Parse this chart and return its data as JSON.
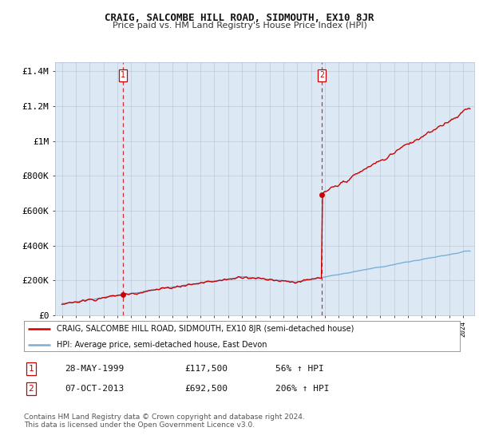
{
  "title": "CRAIG, SALCOMBE HILL ROAD, SIDMOUTH, EX10 8JR",
  "subtitle": "Price paid vs. HM Land Registry's House Price Index (HPI)",
  "outer_bg_color": "#ffffff",
  "plot_bg_color": "#dce9f5",
  "red_line_color": "#cc0000",
  "blue_line_color": "#7bafd4",
  "sale1_date": 1999.41,
  "sale1_price": 117500,
  "sale2_date": 2013.77,
  "sale2_price": 692500,
  "ylim_min": 0,
  "ylim_max": 1450000,
  "xlim_min": 1994.5,
  "xlim_max": 2024.8,
  "legend_entry1": "CRAIG, SALCOMBE HILL ROAD, SIDMOUTH, EX10 8JR (semi-detached house)",
  "legend_entry2": "HPI: Average price, semi-detached house, East Devon",
  "table_row1_num": "1",
  "table_row1_date": "28-MAY-1999",
  "table_row1_price": "£117,500",
  "table_row1_hpi": "56% ↑ HPI",
  "table_row2_num": "2",
  "table_row2_date": "07-OCT-2013",
  "table_row2_price": "£692,500",
  "table_row2_hpi": "206% ↑ HPI",
  "footnote": "Contains HM Land Registry data © Crown copyright and database right 2024.\nThis data is licensed under the Open Government Licence v3.0.",
  "yticks": [
    0,
    200000,
    400000,
    600000,
    800000,
    1000000,
    1200000,
    1400000
  ],
  "ytick_labels": [
    "£0",
    "£200K",
    "£400K",
    "£600K",
    "£800K",
    "£1M",
    "£1.2M",
    "£1.4M"
  ]
}
